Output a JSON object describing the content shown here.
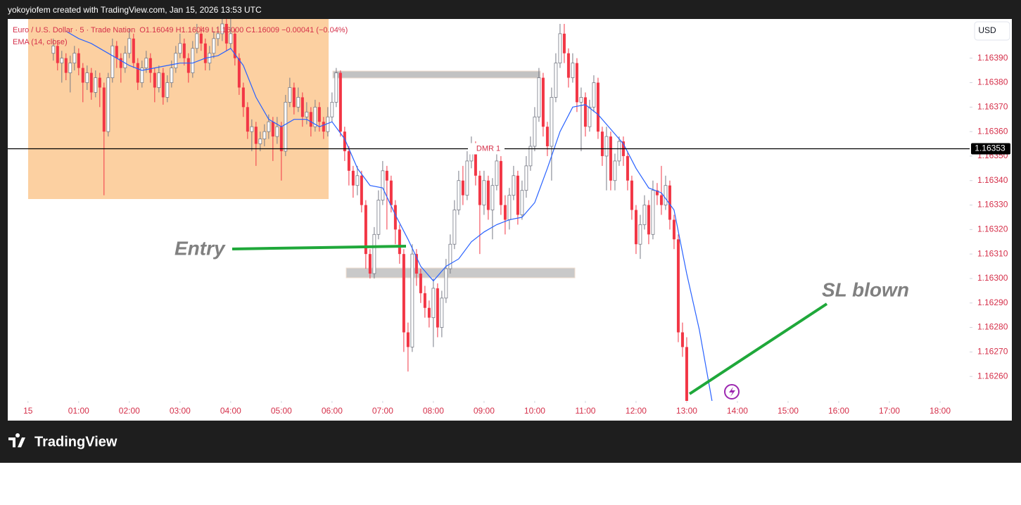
{
  "header": {
    "attribution": "yokoyiofem created with TradingView.com, Jan 15, 2026 13:53 UTC",
    "brand": "TradingView"
  },
  "chart_data": {
    "type": "candlestick",
    "legend": {
      "symbol": "Euro / U.S. Dollar · 5 · Trade Nation",
      "ohlc_text": "O1.16049 H1.16049 L1.16000 C1.16009 −0.00041 (−0.04%)"
    },
    "currency": "USD",
    "up_color": "#ffffff",
    "up_border": "#787b86",
    "down_color": "#f23645",
    "x": [
      30,
      35,
      40,
      45,
      50,
      55,
      60,
      65,
      70,
      75,
      80,
      85,
      90,
      95,
      100,
      105,
      110,
      115,
      120,
      125,
      130,
      135,
      140,
      145,
      150,
      155,
      160,
      165,
      170,
      175,
      180,
      185,
      190,
      195,
      200,
      205,
      210,
      215,
      220,
      225,
      230,
      235,
      240,
      245,
      250,
      255,
      260,
      265,
      270,
      275,
      280,
      285,
      290,
      295,
      300,
      305,
      310,
      315,
      320,
      325,
      330,
      335,
      340,
      345,
      350,
      355,
      360,
      365,
      370,
      375,
      380,
      385,
      390,
      395,
      400,
      405,
      410,
      415,
      420,
      425,
      430,
      435,
      440,
      445,
      450,
      455,
      460,
      465,
      470,
      475,
      480,
      485,
      490,
      495,
      500,
      505,
      510,
      515,
      520,
      525,
      530,
      535,
      540,
      545,
      550,
      555,
      560,
      565,
      570,
      575,
      580,
      585,
      590,
      595,
      600,
      605,
      610,
      615,
      620,
      625,
      630,
      635,
      640,
      645,
      650,
      655,
      660,
      665,
      670,
      675,
      680,
      685,
      690,
      695,
      700,
      705,
      710,
      715,
      720,
      725,
      730,
      735,
      740,
      745,
      750,
      755,
      760,
      765,
      770,
      775,
      780
    ],
    "ohlc": [
      [
        1.16392,
        1.16398,
        1.16389,
        1.16395
      ],
      [
        1.16395,
        1.16397,
        1.16385,
        1.16388
      ],
      [
        1.16388,
        1.16393,
        1.1638,
        1.1639
      ],
      [
        1.1639,
        1.16392,
        1.16381,
        1.16384
      ],
      [
        1.16384,
        1.16391,
        1.16376,
        1.16388
      ],
      [
        1.16388,
        1.16395,
        1.16385,
        1.16392
      ],
      [
        1.16392,
        1.16394,
        1.16383,
        1.16386
      ],
      [
        1.16386,
        1.16388,
        1.16372,
        1.1638
      ],
      [
        1.1638,
        1.16387,
        1.16377,
        1.16384
      ],
      [
        1.16384,
        1.16386,
        1.16373,
        1.16376
      ],
      [
        1.16376,
        1.16385,
        1.16374,
        1.16382
      ],
      [
        1.16382,
        1.16384,
        1.1637,
        1.16378
      ],
      [
        1.16378,
        1.1638,
        1.16334,
        1.1636
      ],
      [
        1.1636,
        1.16384,
        1.16358,
        1.16382
      ],
      [
        1.16382,
        1.16398,
        1.1638,
        1.16395
      ],
      [
        1.16395,
        1.16397,
        1.16386,
        1.1639
      ],
      [
        1.1639,
        1.16392,
        1.1638,
        1.16386
      ],
      [
        1.16386,
        1.16395,
        1.16384,
        1.16392
      ],
      [
        1.16392,
        1.16402,
        1.1639,
        1.16398
      ],
      [
        1.16398,
        1.164,
        1.16386,
        1.16388
      ],
      [
        1.16388,
        1.1639,
        1.16377,
        1.1638
      ],
      [
        1.1638,
        1.16389,
        1.16378,
        1.16386
      ],
      [
        1.16386,
        1.16393,
        1.16384,
        1.1639
      ],
      [
        1.1639,
        1.16392,
        1.1638,
        1.16384
      ],
      [
        1.16384,
        1.16386,
        1.16372,
        1.16378
      ],
      [
        1.16378,
        1.16387,
        1.16376,
        1.16384
      ],
      [
        1.16384,
        1.16386,
        1.16371,
        1.16374
      ],
      [
        1.16374,
        1.16383,
        1.16372,
        1.1638
      ],
      [
        1.1638,
        1.16389,
        1.16378,
        1.16386
      ],
      [
        1.16386,
        1.16395,
        1.16384,
        1.16392
      ],
      [
        1.16392,
        1.164,
        1.1639,
        1.16396
      ],
      [
        1.16396,
        1.16398,
        1.16387,
        1.1639
      ],
      [
        1.1639,
        1.16392,
        1.1638,
        1.16384
      ],
      [
        1.16384,
        1.16397,
        1.16382,
        1.16394
      ],
      [
        1.16394,
        1.16404,
        1.16392,
        1.164
      ],
      [
        1.164,
        1.16403,
        1.16393,
        1.16396
      ],
      [
        1.16396,
        1.16398,
        1.16385,
        1.16388
      ],
      [
        1.16388,
        1.16395,
        1.16385,
        1.16392
      ],
      [
        1.16392,
        1.16401,
        1.1639,
        1.16398
      ],
      [
        1.16398,
        1.16403,
        1.16395,
        1.164
      ],
      [
        1.164,
        1.16406,
        1.16397,
        1.16404
      ],
      [
        1.16404,
        1.16406,
        1.16393,
        1.16396
      ],
      [
        1.16396,
        1.16406,
        1.16394,
        1.164
      ],
      [
        1.164,
        1.16402,
        1.16387,
        1.1639
      ],
      [
        1.1639,
        1.16392,
        1.16375,
        1.16378
      ],
      [
        1.16378,
        1.1638,
        1.16366,
        1.1637
      ],
      [
        1.1637,
        1.16372,
        1.16357,
        1.1636
      ],
      [
        1.1636,
        1.16365,
        1.16352,
        1.16362
      ],
      [
        1.16362,
        1.16364,
        1.16346,
        1.16355
      ],
      [
        1.16355,
        1.1636,
        1.16352,
        1.16357
      ],
      [
        1.16357,
        1.16363,
        1.16354,
        1.1636
      ],
      [
        1.1636,
        1.16367,
        1.16357,
        1.16364
      ],
      [
        1.16364,
        1.16366,
        1.16348,
        1.16358
      ],
      [
        1.16358,
        1.16366,
        1.16355,
        1.16362
      ],
      [
        1.16362,
        1.16364,
        1.1634,
        1.16352
      ],
      [
        1.16352,
        1.16375,
        1.1635,
        1.16372
      ],
      [
        1.16372,
        1.16382,
        1.1637,
        1.16378
      ],
      [
        1.16378,
        1.1638,
        1.16367,
        1.1637
      ],
      [
        1.1637,
        1.16378,
        1.16368,
        1.16374
      ],
      [
        1.16374,
        1.16376,
        1.16362,
        1.16366
      ],
      [
        1.16366,
        1.16372,
        1.16363,
        1.16368
      ],
      [
        1.16368,
        1.1637,
        1.16358,
        1.16362
      ],
      [
        1.16362,
        1.16373,
        1.1636,
        1.1637
      ],
      [
        1.1637,
        1.16372,
        1.1636,
        1.16364
      ],
      [
        1.16364,
        1.16366,
        1.16357,
        1.1636
      ],
      [
        1.1636,
        1.1637,
        1.16358,
        1.16366
      ],
      [
        1.16366,
        1.16376,
        1.16364,
        1.16372
      ],
      [
        1.16372,
        1.16386,
        1.1637,
        1.16384
      ],
      [
        1.16384,
        1.16385,
        1.16358,
        1.1636
      ],
      [
        1.1636,
        1.16362,
        1.16348,
        1.16352
      ],
      [
        1.16352,
        1.16354,
        1.16338,
        1.16344
      ],
      [
        1.16344,
        1.16346,
        1.16333,
        1.16338
      ],
      [
        1.16338,
        1.16346,
        1.16334,
        1.16342
      ],
      [
        1.16342,
        1.16344,
        1.16327,
        1.1633
      ],
      [
        1.1633,
        1.16332,
        1.16304,
        1.1631
      ],
      [
        1.1631,
        1.16312,
        1.163,
        1.16302
      ],
      [
        1.16302,
        1.16321,
        1.163,
        1.16318
      ],
      [
        1.16318,
        1.16336,
        1.16316,
        1.16332
      ],
      [
        1.16332,
        1.16348,
        1.1633,
        1.16344
      ],
      [
        1.16344,
        1.16346,
        1.1632,
        1.1634
      ],
      [
        1.1634,
        1.16342,
        1.16327,
        1.1633
      ],
      [
        1.1633,
        1.16332,
        1.16314,
        1.1632
      ],
      [
        1.1632,
        1.16322,
        1.16306,
        1.1631
      ],
      [
        1.1631,
        1.16312,
        1.1627,
        1.16278
      ],
      [
        1.16278,
        1.16282,
        1.16262,
        1.16272
      ],
      [
        1.16272,
        1.16314,
        1.1627,
        1.1631
      ],
      [
        1.1631,
        1.16312,
        1.16297,
        1.16302
      ],
      [
        1.16302,
        1.16304,
        1.1629,
        1.16294
      ],
      [
        1.16294,
        1.16297,
        1.16284,
        1.16288
      ],
      [
        1.16288,
        1.16291,
        1.1628,
        1.16284
      ],
      [
        1.16284,
        1.163,
        1.16272,
        1.16296
      ],
      [
        1.16296,
        1.16298,
        1.16276,
        1.1628
      ],
      [
        1.1628,
        1.16295,
        1.16276,
        1.16292
      ],
      [
        1.16292,
        1.16308,
        1.1629,
        1.16304
      ],
      [
        1.16304,
        1.16318,
        1.16302,
        1.16314
      ],
      [
        1.16314,
        1.16332,
        1.16312,
        1.16328
      ],
      [
        1.16328,
        1.16344,
        1.16326,
        1.1634
      ],
      [
        1.1634,
        1.16346,
        1.1633,
        1.16334
      ],
      [
        1.16334,
        1.16352,
        1.16332,
        1.16348
      ],
      [
        1.16348,
        1.16358,
        1.16345,
        1.16355
      ],
      [
        1.16355,
        1.16356,
        1.16338,
        1.16342
      ],
      [
        1.16342,
        1.16344,
        1.1631,
        1.1633
      ],
      [
        1.1633,
        1.16344,
        1.16326,
        1.1634
      ],
      [
        1.1634,
        1.16342,
        1.16324,
        1.16328
      ],
      [
        1.16328,
        1.16341,
        1.16316,
        1.16338
      ],
      [
        1.16338,
        1.16352,
        1.16336,
        1.16348
      ],
      [
        1.16348,
        1.1635,
        1.16326,
        1.1633
      ],
      [
        1.1633,
        1.16334,
        1.16318,
        1.16324
      ],
      [
        1.16324,
        1.16337,
        1.1632,
        1.16334
      ],
      [
        1.16334,
        1.16346,
        1.16332,
        1.16342
      ],
      [
        1.16342,
        1.16344,
        1.16322,
        1.16326
      ],
      [
        1.16326,
        1.1634,
        1.16324,
        1.16336
      ],
      [
        1.16336,
        1.1635,
        1.16333,
        1.16346
      ],
      [
        1.16346,
        1.16358,
        1.16344,
        1.16354
      ],
      [
        1.16354,
        1.1637,
        1.16352,
        1.16366
      ],
      [
        1.16366,
        1.16386,
        1.16364,
        1.16382
      ],
      [
        1.16382,
        1.16384,
        1.16358,
        1.16362
      ],
      [
        1.16362,
        1.16364,
        1.1635,
        1.16354
      ],
      [
        1.16354,
        1.16378,
        1.1634,
        1.16374
      ],
      [
        1.16374,
        1.16392,
        1.16372,
        1.16388
      ],
      [
        1.16388,
        1.16404,
        1.16386,
        1.164
      ],
      [
        1.164,
        1.16404,
        1.16388,
        1.16392
      ],
      [
        1.16392,
        1.16394,
        1.16378,
        1.16382
      ],
      [
        1.16382,
        1.16392,
        1.1638,
        1.16388
      ],
      [
        1.16388,
        1.1639,
        1.16368,
        1.16372
      ],
      [
        1.16372,
        1.16378,
        1.16352,
        1.16374
      ],
      [
        1.16374,
        1.16376,
        1.16358,
        1.16362
      ],
      [
        1.16362,
        1.16373,
        1.1636,
        1.1637
      ],
      [
        1.1637,
        1.16383,
        1.16368,
        1.1638
      ],
      [
        1.1638,
        1.16382,
        1.16357,
        1.1636
      ],
      [
        1.1636,
        1.16362,
        1.16346,
        1.1635
      ],
      [
        1.1635,
        1.16362,
        1.16336,
        1.16358
      ],
      [
        1.16358,
        1.1636,
        1.16336,
        1.1634
      ],
      [
        1.1634,
        1.16351,
        1.16336,
        1.16348
      ],
      [
        1.16348,
        1.16358,
        1.16346,
        1.16356
      ],
      [
        1.16356,
        1.16358,
        1.16346,
        1.1635
      ],
      [
        1.1635,
        1.16352,
        1.16336,
        1.1634
      ],
      [
        1.1634,
        1.16342,
        1.16324,
        1.16328
      ],
      [
        1.16328,
        1.1633,
        1.1631,
        1.16314
      ],
      [
        1.16314,
        1.16326,
        1.16308,
        1.16322
      ],
      [
        1.16322,
        1.16334,
        1.1632,
        1.1633
      ],
      [
        1.1633,
        1.16332,
        1.16314,
        1.16318
      ],
      [
        1.16318,
        1.1634,
        1.16316,
        1.16336
      ],
      [
        1.16336,
        1.16339,
        1.1633,
        1.16334
      ],
      [
        1.16334,
        1.16346,
        1.16326,
        1.1633
      ],
      [
        1.1633,
        1.16342,
        1.16328,
        1.16338
      ],
      [
        1.16338,
        1.1634,
        1.1632,
        1.16324
      ],
      [
        1.16324,
        1.16326,
        1.16312,
        1.16316
      ],
      [
        1.16316,
        1.16318,
        1.16274,
        1.16278
      ],
      [
        1.16278,
        1.16282,
        1.16268,
        1.16272
      ],
      [
        1.16272,
        1.16276,
        1.16248,
        1.1625
      ]
    ],
    "series": [
      {
        "name": "EMA (14, close)",
        "color": "#2962ff",
        "x": [
          45,
          60,
          75,
          90,
          105,
          120,
          135,
          150,
          165,
          180,
          195,
          210,
          225,
          240,
          255,
          270,
          285,
          300,
          315,
          330,
          345,
          360,
          375,
          390,
          405,
          420,
          435,
          450,
          465,
          480,
          495,
          510,
          525,
          540,
          555,
          570,
          585,
          600,
          615,
          630,
          645,
          660,
          675,
          690,
          705,
          720,
          735,
          750,
          765,
          780,
          795,
          810
        ],
        "values": [
          1.16401,
          1.16398,
          1.16396,
          1.16393,
          1.1639,
          1.16387,
          1.16385,
          1.16386,
          1.16387,
          1.16388,
          1.16388,
          1.1639,
          1.16391,
          1.16394,
          1.16387,
          1.16374,
          1.16365,
          1.16362,
          1.16365,
          1.16365,
          1.16362,
          1.16364,
          1.16357,
          1.16345,
          1.16338,
          1.16337,
          1.16326,
          1.16316,
          1.16305,
          1.16299,
          1.16305,
          1.16308,
          1.16315,
          1.16319,
          1.16322,
          1.16324,
          1.16325,
          1.16331,
          1.16345,
          1.1636,
          1.1637,
          1.16371,
          1.16367,
          1.16361,
          1.16355,
          1.16345,
          1.16337,
          1.16335,
          1.16328,
          1.16302,
          1.16279,
          1.1625
        ]
      }
    ],
    "hline": {
      "value": 1.16353,
      "label": "DMR 1",
      "color": "#000000"
    },
    "annotations": [
      {
        "text": "Entry"
      },
      {
        "text": "SL blown"
      }
    ],
    "xlim": [
      -24,
      1115
    ],
    "xticks": [
      {
        "value": 0,
        "label": "15"
      },
      {
        "value": 60,
        "label": "01:00"
      },
      {
        "value": 120,
        "label": "02:00"
      },
      {
        "value": 180,
        "label": "03:00"
      },
      {
        "value": 240,
        "label": "04:00"
      },
      {
        "value": 300,
        "label": "05:00"
      },
      {
        "value": 360,
        "label": "06:00"
      },
      {
        "value": 420,
        "label": "07:00"
      },
      {
        "value": 480,
        "label": "08:00"
      },
      {
        "value": 540,
        "label": "09:00"
      },
      {
        "value": 600,
        "label": "10:00"
      },
      {
        "value": 660,
        "label": "11:00"
      },
      {
        "value": 720,
        "label": "12:00"
      },
      {
        "value": 780,
        "label": "13:00"
      },
      {
        "value": 840,
        "label": "14:00"
      },
      {
        "value": 900,
        "label": "15:00"
      },
      {
        "value": 960,
        "label": "16:00"
      },
      {
        "value": 1020,
        "label": "17:00"
      },
      {
        "value": 1080,
        "label": "18:00"
      }
    ],
    "ylim": [
      1.1625,
      1.16406
    ],
    "yticks": [
      {
        "value": 1.1626,
        "label": "1.16260"
      },
      {
        "value": 1.1627,
        "label": "1.16270"
      },
      {
        "value": 1.1628,
        "label": "1.16280"
      },
      {
        "value": 1.1629,
        "label": "1.16290"
      },
      {
        "value": 1.163,
        "label": "1.16300"
      },
      {
        "value": 1.1631,
        "label": "1.16310"
      },
      {
        "value": 1.1632,
        "label": "1.16320"
      },
      {
        "value": 1.1633,
        "label": "1.16330"
      },
      {
        "value": 1.1634,
        "label": "1.16340"
      },
      {
        "value": 1.1635,
        "label": "1.16350"
      },
      {
        "value": 1.1636,
        "label": "1.16360"
      },
      {
        "value": 1.1637,
        "label": "1.16370"
      },
      {
        "value": 1.1638,
        "label": "1.16380"
      },
      {
        "value": 1.1639,
        "label": "1.16390"
      }
    ]
  }
}
